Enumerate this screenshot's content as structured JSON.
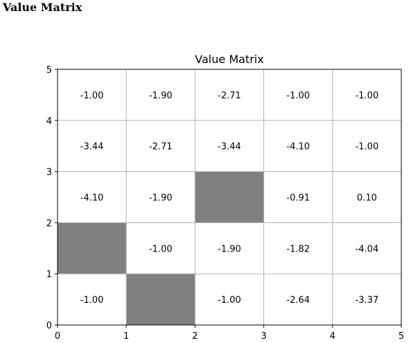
{
  "page": {
    "heading": "Value Matrix"
  },
  "chart_data": {
    "type": "heatmap",
    "title": "Value Matrix",
    "xlabel": "",
    "ylabel": "",
    "xlim": [
      0,
      5
    ],
    "ylim": [
      0,
      5
    ],
    "x_ticks": [
      "0",
      "1",
      "2",
      "3",
      "4",
      "5"
    ],
    "y_ticks": [
      "0",
      "1",
      "2",
      "3",
      "4",
      "5"
    ],
    "grid": true,
    "cell_color": "#ffffff",
    "blocked_color": "#808080",
    "grid_color": "#b0b0b0",
    "rows_top_to_bottom": [
      [
        "-1.00",
        "-1.90",
        "-2.71",
        "-1.00",
        "-1.00"
      ],
      [
        "-3.44",
        "-2.71",
        "-3.44",
        "-4.10",
        "-1.00"
      ],
      [
        "-4.10",
        "-1.90",
        null,
        "-0.91",
        "0.10"
      ],
      [
        null,
        "-1.00",
        "-1.90",
        "-1.82",
        "-4.04"
      ],
      [
        "-1.00",
        null,
        "-1.00",
        "-2.64",
        "-3.37"
      ]
    ]
  }
}
